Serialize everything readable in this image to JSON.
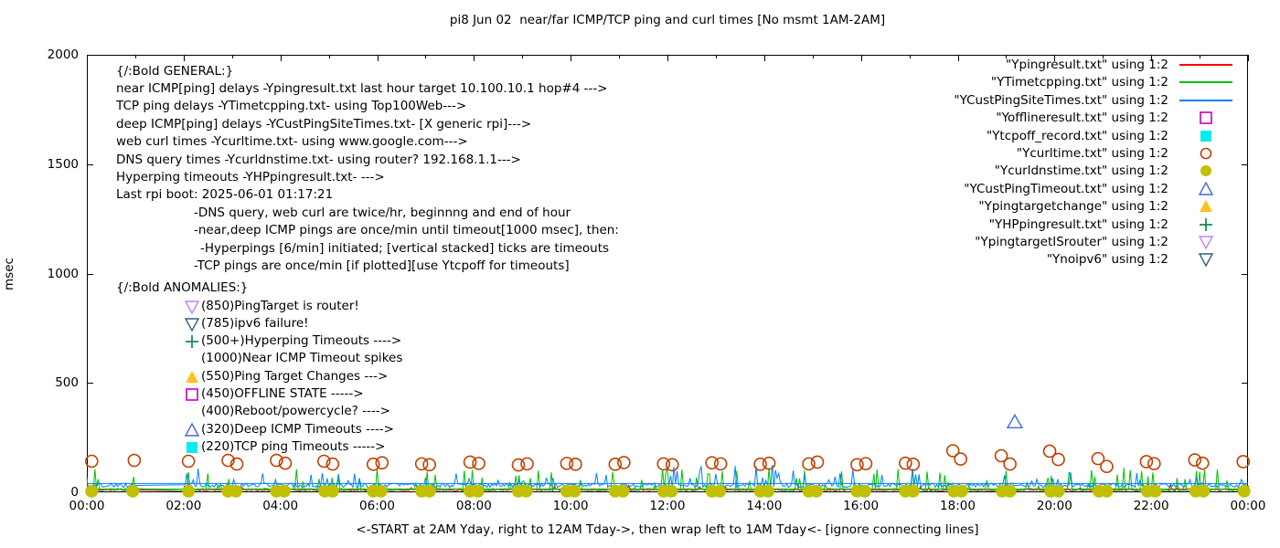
{
  "chart_data": {
    "type": "line",
    "title": "pi8 Jun 02  near/far ICMP/TCP ping and curl times [No msmt 1AM-2AM]",
    "xlabel": "<-START at 2AM Yday, right to 12AM Tday->, then wrap left to 1AM Tday<- [ignore connecting lines]",
    "ylabel": "msec",
    "ylim": [
      0,
      2000
    ],
    "xlim_hours": [
      0,
      24
    ],
    "grid": false,
    "legend_position": "top-right-inside",
    "no_measurement_window": "01:00-02:00",
    "y_ticks": [
      0,
      500,
      1000,
      1500,
      2000
    ],
    "x_tick_hours": [
      0,
      2,
      4,
      6,
      8,
      10,
      12,
      14,
      16,
      18,
      20,
      22,
      24
    ],
    "x_tick_labels": [
      "00:00",
      "02:00",
      "04:00",
      "06:00",
      "08:00",
      "10:00",
      "12:00",
      "14:00",
      "16:00",
      "18:00",
      "20:00",
      "22:00",
      "00:00"
    ],
    "series": [
      {
        "name": "Ypingresult.txt",
        "color": "#ff0000",
        "style": "noisy-line",
        "baseline_msec": 7,
        "noise_msec": 8,
        "spike_chance": 0.02,
        "spike_amp_msec": 25,
        "seed": 11
      },
      {
        "name": "YTimetcpping.txt",
        "color": "#00c000",
        "style": "noisy-line",
        "baseline_msec": 5,
        "noise_msec": 13,
        "spike_chance": 0.1,
        "spike_amp_msec": 100,
        "seed": 23
      },
      {
        "name": "YCustPingSiteTimes.txt",
        "color": "#0080ff",
        "style": "noisy-line",
        "baseline_msec": 22,
        "noise_msec": 20,
        "spike_chance": 0.12,
        "spike_amp_msec": 85,
        "seed": 37
      }
    ],
    "wrap_connecting_lines": [
      {
        "series": "YCustPingSiteTimes.txt",
        "color": "#0080ff",
        "value_msec": 40
      },
      {
        "series": "YTimetcpping.txt",
        "color": "#00c000",
        "value_msec": 15
      }
    ],
    "point_markers": [
      {
        "name": "Ycurltime.txt",
        "marker": "circle-open",
        "color": "#c04000",
        "points_hour_msec": [
          [
            0.1,
            142
          ],
          [
            0.98,
            146
          ],
          [
            2.1,
            142
          ],
          [
            2.92,
            146
          ],
          [
            3.1,
            129
          ],
          [
            3.92,
            146
          ],
          [
            4.1,
            133
          ],
          [
            4.9,
            142
          ],
          [
            5.08,
            129
          ],
          [
            5.92,
            128
          ],
          [
            6.1,
            135
          ],
          [
            6.92,
            130
          ],
          [
            7.08,
            126
          ],
          [
            7.92,
            138
          ],
          [
            8.1,
            132
          ],
          [
            8.92,
            125
          ],
          [
            9.1,
            130
          ],
          [
            9.92,
            132
          ],
          [
            10.1,
            128
          ],
          [
            10.92,
            128
          ],
          [
            11.1,
            136
          ],
          [
            11.92,
            130
          ],
          [
            12.1,
            126
          ],
          [
            12.92,
            135
          ],
          [
            13.1,
            130
          ],
          [
            13.92,
            128
          ],
          [
            14.1,
            133
          ],
          [
            14.92,
            130
          ],
          [
            15.1,
            138
          ],
          [
            15.92,
            126
          ],
          [
            16.1,
            131
          ],
          [
            16.92,
            133
          ],
          [
            17.08,
            128
          ],
          [
            17.9,
            190
          ],
          [
            18.06,
            152
          ],
          [
            18.9,
            167
          ],
          [
            19.08,
            129
          ],
          [
            19.9,
            188
          ],
          [
            20.08,
            150
          ],
          [
            20.9,
            154
          ],
          [
            21.08,
            118
          ],
          [
            21.9,
            140
          ],
          [
            22.06,
            131
          ],
          [
            22.9,
            148
          ],
          [
            23.06,
            133
          ],
          [
            23.9,
            140
          ]
        ]
      },
      {
        "name": "Ycurldnstime.txt",
        "marker": "circle-filled",
        "color": "#c0c000",
        "points_hour_msec": [
          [
            0.1,
            5
          ],
          [
            0.95,
            5
          ],
          [
            2.1,
            5
          ],
          [
            2.92,
            5
          ],
          [
            3.08,
            5
          ],
          [
            3.92,
            5
          ],
          [
            4.08,
            5
          ],
          [
            4.92,
            5
          ],
          [
            5.08,
            5
          ],
          [
            5.92,
            5
          ],
          [
            6.08,
            5
          ],
          [
            6.92,
            5
          ],
          [
            7.08,
            5
          ],
          [
            7.92,
            5
          ],
          [
            8.08,
            5
          ],
          [
            8.92,
            5
          ],
          [
            9.08,
            5
          ],
          [
            9.92,
            5
          ],
          [
            10.08,
            5
          ],
          [
            10.92,
            5
          ],
          [
            11.08,
            5
          ],
          [
            11.92,
            5
          ],
          [
            12.08,
            5
          ],
          [
            12.92,
            5
          ],
          [
            13.08,
            5
          ],
          [
            13.92,
            5
          ],
          [
            14.08,
            5
          ],
          [
            14.92,
            5
          ],
          [
            15.08,
            5
          ],
          [
            15.92,
            5
          ],
          [
            16.08,
            5
          ],
          [
            16.92,
            5
          ],
          [
            17.08,
            5
          ],
          [
            17.92,
            5
          ],
          [
            18.08,
            5
          ],
          [
            18.92,
            5
          ],
          [
            19.08,
            5
          ],
          [
            19.92,
            5
          ],
          [
            20.08,
            5
          ],
          [
            20.92,
            5
          ],
          [
            21.08,
            5
          ],
          [
            21.92,
            5
          ],
          [
            22.08,
            5
          ],
          [
            22.92,
            5
          ],
          [
            23.08,
            5
          ],
          [
            23.92,
            5
          ]
        ]
      },
      {
        "name": "YCustPingTimeout.txt",
        "marker": "triangle-up-open",
        "color": "#4169e1",
        "points_hour_msec": [
          [
            19.18,
            320
          ]
        ]
      }
    ]
  },
  "annotations": {
    "general": {
      "heading": "{/:Bold GENERAL:}",
      "lines": [
        {
          "indent": 0,
          "text": "near ICMP[ping] delays -Ypingresult.txt last hour target 10.100.10.1 hop#4 --->"
        },
        {
          "indent": 0,
          "text": "TCP ping delays -YTimetcpping.txt- using Top100Web--->"
        },
        {
          "indent": 0,
          "text": "deep ICMP[ping] delays -YCustPingSiteTimes.txt- [X generic rpi]--->"
        },
        {
          "indent": 0,
          "text": "web curl times -Ycurltime.txt- using www.google.com--->"
        },
        {
          "indent": 0,
          "text": "DNS query times -Ycurldnstime.txt- using router? 192.168.1.1--->"
        },
        {
          "indent": 0,
          "text": "Hyperping timeouts -YHPpingresult.txt- --->"
        },
        {
          "indent": 0,
          "text": "Last rpi boot: 2025-06-01 01:17:21"
        },
        {
          "indent": 1,
          "text": "-DNS query, web curl are twice/hr, beginnng and end of hour"
        },
        {
          "indent": 1,
          "text": "-near,deep ICMP pings are once/min until timeout[1000 msec], then:"
        },
        {
          "indent": 2,
          "text": "-Hyperpings [6/min] initiated; [vertical stacked] ticks are timeouts"
        },
        {
          "indent": 1,
          "text": "-TCP pings are once/min [if plotted][use Ytcpoff for timeouts]"
        }
      ]
    },
    "anomalies": {
      "heading": "{/:Bold ANOMALIES:}",
      "items": [
        {
          "marker": "triangle-down-open",
          "color": "#c080ff",
          "label": "(850)PingTarget is router!"
        },
        {
          "marker": "triangle-down-open",
          "color": "#306080",
          "label": "(785)ipv6 failure!"
        },
        {
          "marker": "plus",
          "color": "#008040",
          "label": "(500+)Hyperping Timeouts ---->"
        },
        {
          "marker": null,
          "color": null,
          "label": "(1000)Near ICMP Timeout spikes"
        },
        {
          "marker": "triangle-up-filled",
          "color": "#ffc020",
          "label": "(550)Ping Target Changes --->"
        },
        {
          "marker": "square-open",
          "color": "#bf00bf",
          "label": "(450)OFFLINE STATE ----->"
        },
        {
          "marker": null,
          "color": null,
          "label": "(400)Reboot/powercycle? ---->"
        },
        {
          "marker": "triangle-up-open",
          "color": "#4169e1",
          "label": "(320)Deep ICMP Timeouts ---->"
        },
        {
          "marker": "square-filled",
          "color": "#00eeee",
          "label": "(220)TCP ping Timeouts ----->"
        }
      ]
    }
  },
  "legend": {
    "items": [
      {
        "label": "\"Ypingresult.txt\" using 1:2",
        "marker": "line",
        "color": "#ff0000"
      },
      {
        "label": "\"YTimetcpping.txt\" using 1:2",
        "marker": "line",
        "color": "#00c000"
      },
      {
        "label": "\"YCustPingSiteTimes.txt\" using 1:2",
        "marker": "line",
        "color": "#0080ff"
      },
      {
        "label": "\"Yofflineresult.txt\" using 1:2",
        "marker": "square-open",
        "color": "#bf00bf"
      },
      {
        "label": "\"Ytcpoff_record.txt\" using 1:2",
        "marker": "square-filled",
        "color": "#00eeee"
      },
      {
        "label": "\"Ycurltime.txt\" using 1:2",
        "marker": "circle-open",
        "color": "#c04000"
      },
      {
        "label": "\"Ycurldnstime.txt\" using 1:2",
        "marker": "circle-filled",
        "color": "#c0c000"
      },
      {
        "label": "\"YCustPingTimeout.txt\" using 1:2",
        "marker": "triangle-up-open",
        "color": "#4169e1"
      },
      {
        "label": "\"Ypingtargetchange\" using 1:2",
        "marker": "triangle-up-filled",
        "color": "#ffc020"
      },
      {
        "label": "\"YHPpingresult.txt\" using 1:2",
        "marker": "plus",
        "color": "#008040"
      },
      {
        "label": "\"YpingtargetISrouter\" using 1:2",
        "marker": "triangle-down-open",
        "color": "#c080ff"
      },
      {
        "label": "\"Ynoipv6\" using 1:2",
        "marker": "triangle-down-open",
        "color": "#306080"
      }
    ]
  }
}
